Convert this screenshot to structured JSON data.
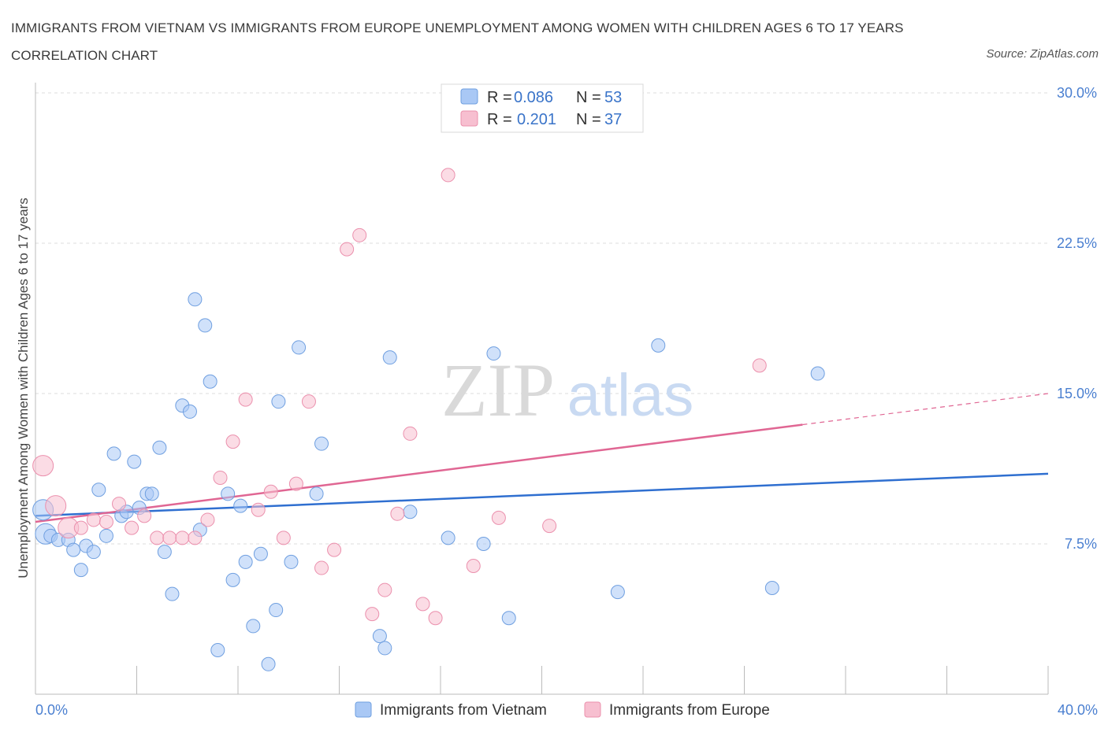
{
  "title": "IMMIGRANTS FROM VIETNAM VS IMMIGRANTS FROM EUROPE UNEMPLOYMENT AMONG WOMEN WITH CHILDREN AGES 6 TO 17 YEARS CORRELATION CHART",
  "source": "Source: ZipAtlas.com",
  "watermark": {
    "zip": "ZIP",
    "atlas": "atlas"
  },
  "legend": {
    "r_label": "R =",
    "n_label": "N =",
    "rows": [
      {
        "r": "0.086",
        "n": "53",
        "color": "#a9c8f5"
      },
      {
        "r": "0.201",
        "n": "37",
        "color": "#f7bfd0"
      }
    ]
  },
  "bottom_legend": [
    "Immigrants from Vietnam",
    "Immigrants from Europe"
  ],
  "chart_data": {
    "type": "scatter",
    "ylabel": "Unemployment Among Women with Children Ages 6 to 17 years",
    "xlim": [
      0,
      40
    ],
    "ylim": [
      0,
      30
    ],
    "x_tick_labels": [
      {
        "value": 0,
        "label": "0.0%"
      },
      {
        "value": 40,
        "label": "40.0%"
      }
    ],
    "y_tick_labels": [
      {
        "value": 7.5,
        "label": "7.5%"
      },
      {
        "value": 15,
        "label": "15.0%"
      },
      {
        "value": 22.5,
        "label": "22.5%"
      },
      {
        "value": 30,
        "label": "30.0%"
      }
    ],
    "grid": true,
    "series": [
      {
        "name": "Immigrants from Vietnam",
        "color": "#a9c8f5",
        "stroke": "#6f9fe0",
        "trend": {
          "x": [
            0,
            40
          ],
          "y": [
            8.9,
            11.0
          ],
          "color": "#2f6fd0"
        },
        "points": [
          [
            0.3,
            9.2,
            "l"
          ],
          [
            0.4,
            8.0,
            "l"
          ],
          [
            0.6,
            7.9
          ],
          [
            0.9,
            7.7
          ],
          [
            1.3,
            7.7
          ],
          [
            1.5,
            7.2
          ],
          [
            1.8,
            6.2
          ],
          [
            2.0,
            7.4
          ],
          [
            2.3,
            7.1
          ],
          [
            2.5,
            10.2
          ],
          [
            2.8,
            7.9
          ],
          [
            3.1,
            12.0
          ],
          [
            3.4,
            8.9
          ],
          [
            3.6,
            9.1
          ],
          [
            3.9,
            11.6
          ],
          [
            4.1,
            9.3
          ],
          [
            4.4,
            10.0
          ],
          [
            4.6,
            10.0
          ],
          [
            4.9,
            12.3
          ],
          [
            5.1,
            7.1
          ],
          [
            5.4,
            5.0
          ],
          [
            5.8,
            14.4
          ],
          [
            6.1,
            14.1
          ],
          [
            6.3,
            19.7
          ],
          [
            6.5,
            8.2
          ],
          [
            6.7,
            18.4
          ],
          [
            6.9,
            15.6
          ],
          [
            7.2,
            2.2
          ],
          [
            7.6,
            10.0
          ],
          [
            7.8,
            5.7
          ],
          [
            8.1,
            9.4
          ],
          [
            8.3,
            6.6
          ],
          [
            8.6,
            3.4
          ],
          [
            8.9,
            7.0
          ],
          [
            9.2,
            1.5
          ],
          [
            9.5,
            4.2
          ],
          [
            9.6,
            14.6
          ],
          [
            10.1,
            6.6
          ],
          [
            10.4,
            17.3
          ],
          [
            11.1,
            10.0
          ],
          [
            11.3,
            12.5
          ],
          [
            13.6,
            2.9
          ],
          [
            13.8,
            2.3
          ],
          [
            14.0,
            16.8
          ],
          [
            14.8,
            9.1
          ],
          [
            16.3,
            7.8
          ],
          [
            17.7,
            7.5
          ],
          [
            18.1,
            17.0
          ],
          [
            18.7,
            3.8
          ],
          [
            23.0,
            5.1
          ],
          [
            24.6,
            17.4
          ],
          [
            29.1,
            5.3
          ],
          [
            30.9,
            16.0
          ]
        ]
      },
      {
        "name": "Immigrants from Europe",
        "color": "#f7bfd0",
        "stroke": "#eb90ad",
        "trend": {
          "x": [
            0,
            40
          ],
          "y": [
            8.6,
            15.0
          ],
          "solid_until": 30.3,
          "color": "#e06693"
        },
        "points": [
          [
            0.3,
            11.4,
            "l"
          ],
          [
            0.8,
            9.4,
            "l"
          ],
          [
            1.3,
            8.3,
            "l"
          ],
          [
            1.8,
            8.3
          ],
          [
            2.3,
            8.7
          ],
          [
            2.8,
            8.6
          ],
          [
            3.3,
            9.5
          ],
          [
            3.8,
            8.3
          ],
          [
            4.3,
            8.9
          ],
          [
            4.8,
            7.8
          ],
          [
            5.3,
            7.8
          ],
          [
            5.8,
            7.8
          ],
          [
            6.3,
            7.8
          ],
          [
            6.8,
            8.7
          ],
          [
            7.3,
            10.8
          ],
          [
            7.8,
            12.6
          ],
          [
            8.3,
            14.7
          ],
          [
            8.8,
            9.2
          ],
          [
            9.3,
            10.1
          ],
          [
            9.8,
            7.8
          ],
          [
            10.3,
            10.5
          ],
          [
            10.8,
            14.6
          ],
          [
            11.3,
            6.3
          ],
          [
            11.8,
            7.2
          ],
          [
            12.3,
            22.2
          ],
          [
            12.8,
            22.9
          ],
          [
            13.3,
            4.0
          ],
          [
            13.8,
            5.2
          ],
          [
            14.3,
            9.0
          ],
          [
            14.8,
            13.0
          ],
          [
            15.3,
            4.5
          ],
          [
            15.8,
            3.8
          ],
          [
            16.3,
            25.9
          ],
          [
            17.3,
            6.4
          ],
          [
            18.3,
            8.8
          ],
          [
            20.3,
            8.4
          ],
          [
            28.6,
            16.4
          ]
        ]
      }
    ]
  }
}
